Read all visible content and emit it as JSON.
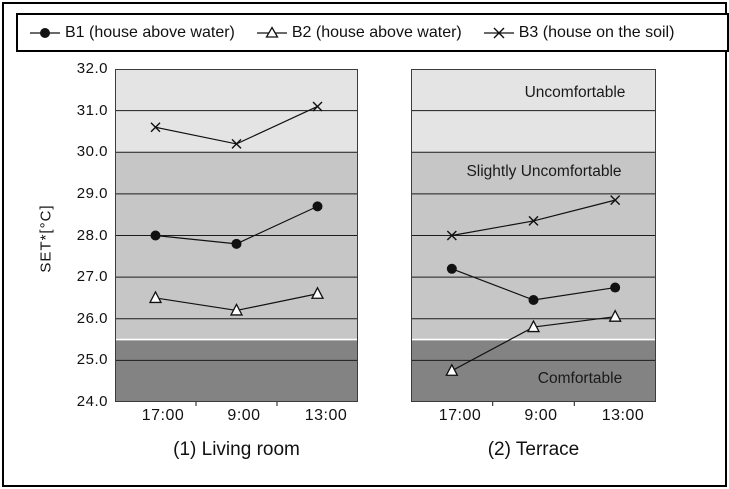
{
  "figure": {
    "ylabel": "SET*[°C]",
    "y_tick_labels": [
      "32.0",
      "31.0",
      "30.0",
      "29.0",
      "28.0",
      "27.0",
      "26.0",
      "25.0",
      "24.0"
    ],
    "legend": {
      "items": [
        {
          "id": "B1",
          "label": "B1 (house above water)",
          "marker": "filled-circle"
        },
        {
          "id": "B2",
          "label": "B2 (house above water)",
          "marker": "open-triangle"
        },
        {
          "id": "B3",
          "label": "B3 (house on the soil)",
          "marker": "x-cross"
        }
      ]
    },
    "colors": {
      "uncomfortable_band": "#e4e4e4",
      "slightly_uncomfortable_band": "#c6c6c6",
      "comfortable_band": "#838383",
      "band_separator": "#ffffff",
      "series_line": "#111111",
      "gridline": "#1c1c1c",
      "panel_border": "#3c3c3c",
      "background": "#ffffff"
    }
  },
  "bands": [
    {
      "label": "Uncomfortable",
      "from": 30.0,
      "to": 32.0,
      "color_key": "uncomfortable_band"
    },
    {
      "label": "Slightly Uncomfortable",
      "from": 25.5,
      "to": 30.0,
      "color_key": "slightly_uncomfortable_band"
    },
    {
      "label": "Comfortable",
      "from": 24.0,
      "to": 25.5,
      "color_key": "comfortable_band"
    }
  ],
  "chart_data": [
    {
      "type": "line",
      "title": "(1) Living room",
      "categories": [
        "17:00",
        "9:00",
        "13:00"
      ],
      "ylabel": "SET*[°C]",
      "ylim": [
        24.0,
        32.0
      ],
      "ytick_step": 1.0,
      "series": [
        {
          "id": "B1",
          "name": "B1 (house above water)",
          "marker": "filled-circle",
          "values": [
            28.0,
            27.8,
            28.7
          ]
        },
        {
          "id": "B2",
          "name": "B2 (house above water)",
          "marker": "open-triangle",
          "values": [
            26.5,
            26.2,
            26.6
          ]
        },
        {
          "id": "B3",
          "name": "B3 (house on the soil)",
          "marker": "x-cross",
          "values": [
            30.6,
            30.2,
            31.1
          ]
        }
      ]
    },
    {
      "type": "line",
      "title": "(2) Terrace",
      "categories": [
        "17:00",
        "9:00",
        "13:00"
      ],
      "ylabel": "SET*[°C]",
      "ylim": [
        24.0,
        32.0
      ],
      "ytick_step": 1.0,
      "series": [
        {
          "id": "B1",
          "name": "B1 (house above water)",
          "marker": "filled-circle",
          "values": [
            27.2,
            26.45,
            26.75
          ]
        },
        {
          "id": "B2",
          "name": "B2 (house above water)",
          "marker": "open-triangle",
          "values": [
            24.75,
            25.8,
            26.05
          ]
        },
        {
          "id": "B3",
          "name": "B3 (house on the soil)",
          "marker": "x-cross",
          "values": [
            28.0,
            28.35,
            28.85
          ]
        }
      ]
    }
  ]
}
